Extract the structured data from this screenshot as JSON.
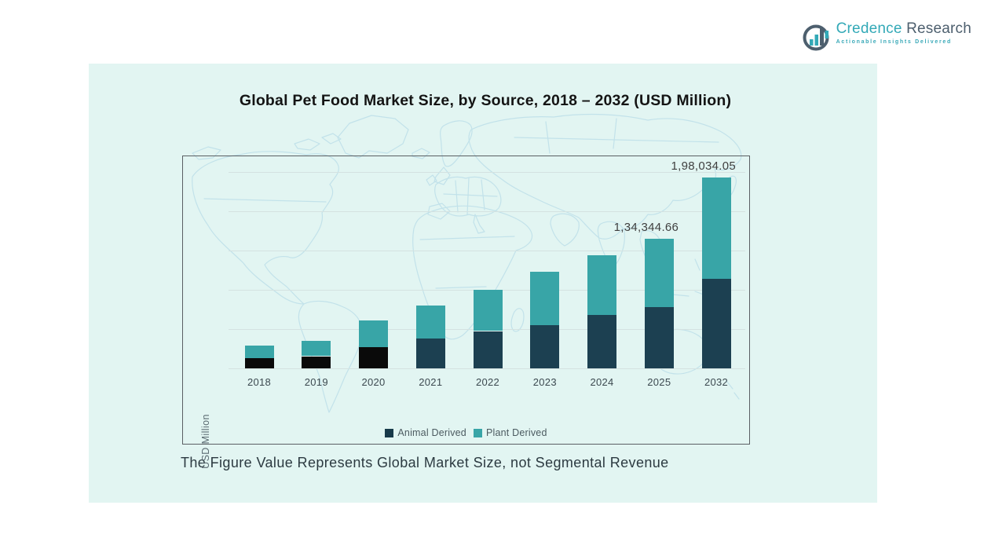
{
  "logo": {
    "name_primary": "Credence",
    "name_secondary": "Research",
    "tagline": "Actionable Insights Delivered",
    "primary_color": "#33a9b7",
    "secondary_color": "#4d5f6e"
  },
  "chart_data": {
    "type": "bar",
    "stacked": true,
    "title": "Global Pet Food Market Size, by Source, 2018 – 2032 (USD Million)",
    "xlabel": "",
    "ylabel": "USD Million",
    "categories": [
      "2018",
      "2019",
      "2020",
      "2021",
      "2022",
      "2023",
      "2024",
      "2025",
      "2032"
    ],
    "series": [
      {
        "name": "Animal Derived",
        "color": "#1c4051",
        "values": [
          10300,
          12600,
          22100,
          30800,
          38700,
          45000,
          55300,
          63244.66,
          92934.05
        ]
      },
      {
        "name": "Plant Derived",
        "color": "#38a5a7",
        "values": [
          13400,
          15800,
          27700,
          34800,
          42700,
          55400,
          61700,
          71100,
          105100
        ]
      }
    ],
    "totals": [
      23700,
      28400,
      49800,
      65600,
      81400,
      100400,
      117000,
      134344.66,
      198034.05
    ],
    "data_labels": {
      "2025": "1,34,344.66",
      "2032": "1,98,034.05"
    },
    "animal_segment_colors": [
      "#0a0a0a",
      "#0a0a0a",
      "#0a0a0a",
      "#1c4051",
      "#1c4051",
      "#1c4051",
      "#1c4051",
      "#1c4051",
      "#1c4051"
    ],
    "ylim": [
      0,
      220000
    ],
    "grid": "horizontal",
    "legend_position": "bottom-center"
  },
  "footer": {
    "note": "The Figure Value Represents Global Market Size, not Segmental Revenue"
  },
  "colors": {
    "panel_background": "#e2f5f2",
    "map_outline": "#c2e2ea",
    "gridline": "#d4e2e1",
    "chart_border": "#5a5f63"
  }
}
